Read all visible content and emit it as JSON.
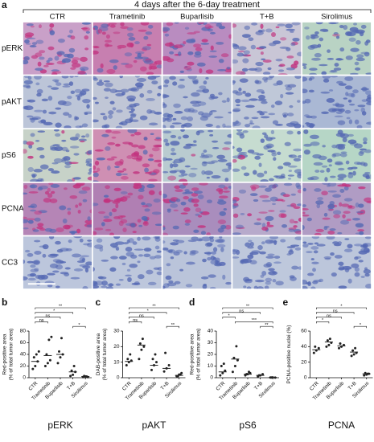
{
  "panel_a": {
    "label": "a",
    "header": "4 days after the 6-day treatment",
    "columns": [
      "CTR",
      "Trametinib",
      "Buparlisib",
      "T+B",
      "Sirolimus"
    ],
    "rows": [
      "pERK",
      "pAKT",
      "pS6",
      "PCNA",
      "CC3"
    ]
  },
  "chart_data": [
    {
      "type": "scatter",
      "panel": "b",
      "xlabel": "pERK",
      "ylabel": [
        "Red-positive area",
        "(% of total tumor area)"
      ],
      "categories": [
        "CTR",
        "Trametinib",
        "Buparlisib",
        "T+B",
        "Sirolimus"
      ],
      "groups": [
        {
          "points": [
            15,
            20,
            28,
            35,
            40,
            45
          ],
          "mean": 28
        },
        {
          "points": [
            20,
            25,
            30,
            40,
            65,
            70
          ],
          "mean": 38
        },
        {
          "points": [
            25,
            35,
            40,
            45,
            68
          ],
          "mean": 40
        },
        {
          "points": [
            3,
            5,
            10,
            12,
            20
          ],
          "mean": 10
        },
        {
          "points": [
            1,
            2,
            1,
            3,
            2
          ],
          "mean": 2
        }
      ],
      "ylim": [
        0,
        80
      ],
      "yticks": [
        0,
        20,
        40,
        60,
        80
      ],
      "brackets": [
        {
          "from": 0,
          "to": 4,
          "label": "**"
        },
        {
          "from": 0,
          "to": 3,
          "label": "*"
        },
        {
          "from": 0,
          "to": 2,
          "label": "ns"
        },
        {
          "from": 0,
          "to": 1,
          "label": "ns"
        },
        {
          "from": 3,
          "to": 4,
          "label": "*"
        }
      ]
    },
    {
      "type": "scatter",
      "panel": "c",
      "xlabel": "pAKT",
      "ylabel": [
        "DAB-positive area",
        "(% of total tumor area)"
      ],
      "categories": [
        "CTR",
        "Trametinib",
        "Buparlisib",
        "T+B",
        "Sirolimus"
      ],
      "groups": [
        {
          "points": [
            8,
            10,
            11,
            12,
            15
          ],
          "mean": 10.5
        },
        {
          "points": [
            12,
            18,
            20,
            22,
            25
          ],
          "mean": 21
        },
        {
          "points": [
            5,
            8,
            10,
            12,
            15
          ],
          "mean": 8
        },
        {
          "points": [
            4,
            6,
            8,
            16
          ],
          "mean": 6
        },
        {
          "points": [
            1,
            2,
            3,
            1,
            2
          ],
          "mean": 1.5
        }
      ],
      "ylim": [
        0,
        30
      ],
      "yticks": [
        0,
        10,
        20,
        30
      ],
      "brackets": [
        {
          "from": 0,
          "to": 4,
          "label": "**"
        },
        {
          "from": 0,
          "to": 3,
          "label": "*"
        },
        {
          "from": 0,
          "to": 2,
          "label": "ns"
        },
        {
          "from": 0,
          "to": 1,
          "label": "ns"
        },
        {
          "from": 3,
          "to": 4,
          "label": "**"
        }
      ]
    },
    {
      "type": "scatter",
      "panel": "d",
      "xlabel": "pS6",
      "ylabel": [
        "Red-positive area",
        "(% of total tumor area)"
      ],
      "categories": [
        "CTR",
        "Trametinib",
        "Buparlisib",
        "T+B",
        "Sirolimus"
      ],
      "groups": [
        {
          "points": [
            2,
            4,
            6,
            10,
            12
          ],
          "mean": 5
        },
        {
          "points": [
            5,
            10,
            15,
            17,
            27
          ],
          "mean": 16
        },
        {
          "points": [
            2,
            3,
            4,
            3,
            5
          ],
          "mean": 3
        },
        {
          "points": [
            1,
            2,
            3,
            2
          ],
          "mean": 2
        },
        {
          "points": [
            0.2,
            0.3,
            0.1,
            0.2
          ],
          "mean": 0.2
        }
      ],
      "ylim": [
        0,
        40
      ],
      "yticks": [
        0,
        10,
        20,
        30,
        40
      ],
      "brackets": [
        {
          "from": 0,
          "to": 4,
          "label": "**"
        },
        {
          "from": 0,
          "to": 3,
          "label": "ns"
        },
        {
          "from": 0,
          "to": 1,
          "label": "*"
        },
        {
          "from": 1,
          "to": 4,
          "label": "***"
        },
        {
          "from": 3,
          "to": 4,
          "label": "**"
        }
      ]
    },
    {
      "type": "scatter",
      "panel": "e",
      "xlabel": "PCNA",
      "ylabel": [
        "PCNA-positive nuclei (%)"
      ],
      "categories": [
        "CTR",
        "Trametinib",
        "Buparlisib",
        "T+B",
        "Sirolimus"
      ],
      "groups": [
        {
          "points": [
            32,
            35,
            38,
            40
          ],
          "mean": 36
        },
        {
          "points": [
            40,
            42,
            45,
            48,
            50
          ],
          "mean": 46
        },
        {
          "points": [
            38,
            40,
            42,
            44
          ],
          "mean": 41
        },
        {
          "points": [
            28,
            30,
            32,
            35,
            38
          ],
          "mean": 33
        },
        {
          "points": [
            3,
            4,
            5,
            6,
            5
          ],
          "mean": 5
        }
      ],
      "ylim": [
        0,
        60
      ],
      "yticks": [
        0,
        20,
        40,
        60
      ],
      "brackets": [
        {
          "from": 0,
          "to": 4,
          "label": "*"
        },
        {
          "from": 0,
          "to": 3,
          "label": "ns"
        },
        {
          "from": 0,
          "to": 2,
          "label": "ns"
        },
        {
          "from": 0,
          "to": 1,
          "label": "*"
        },
        {
          "from": 3,
          "to": 4,
          "label": "*"
        }
      ]
    }
  ]
}
